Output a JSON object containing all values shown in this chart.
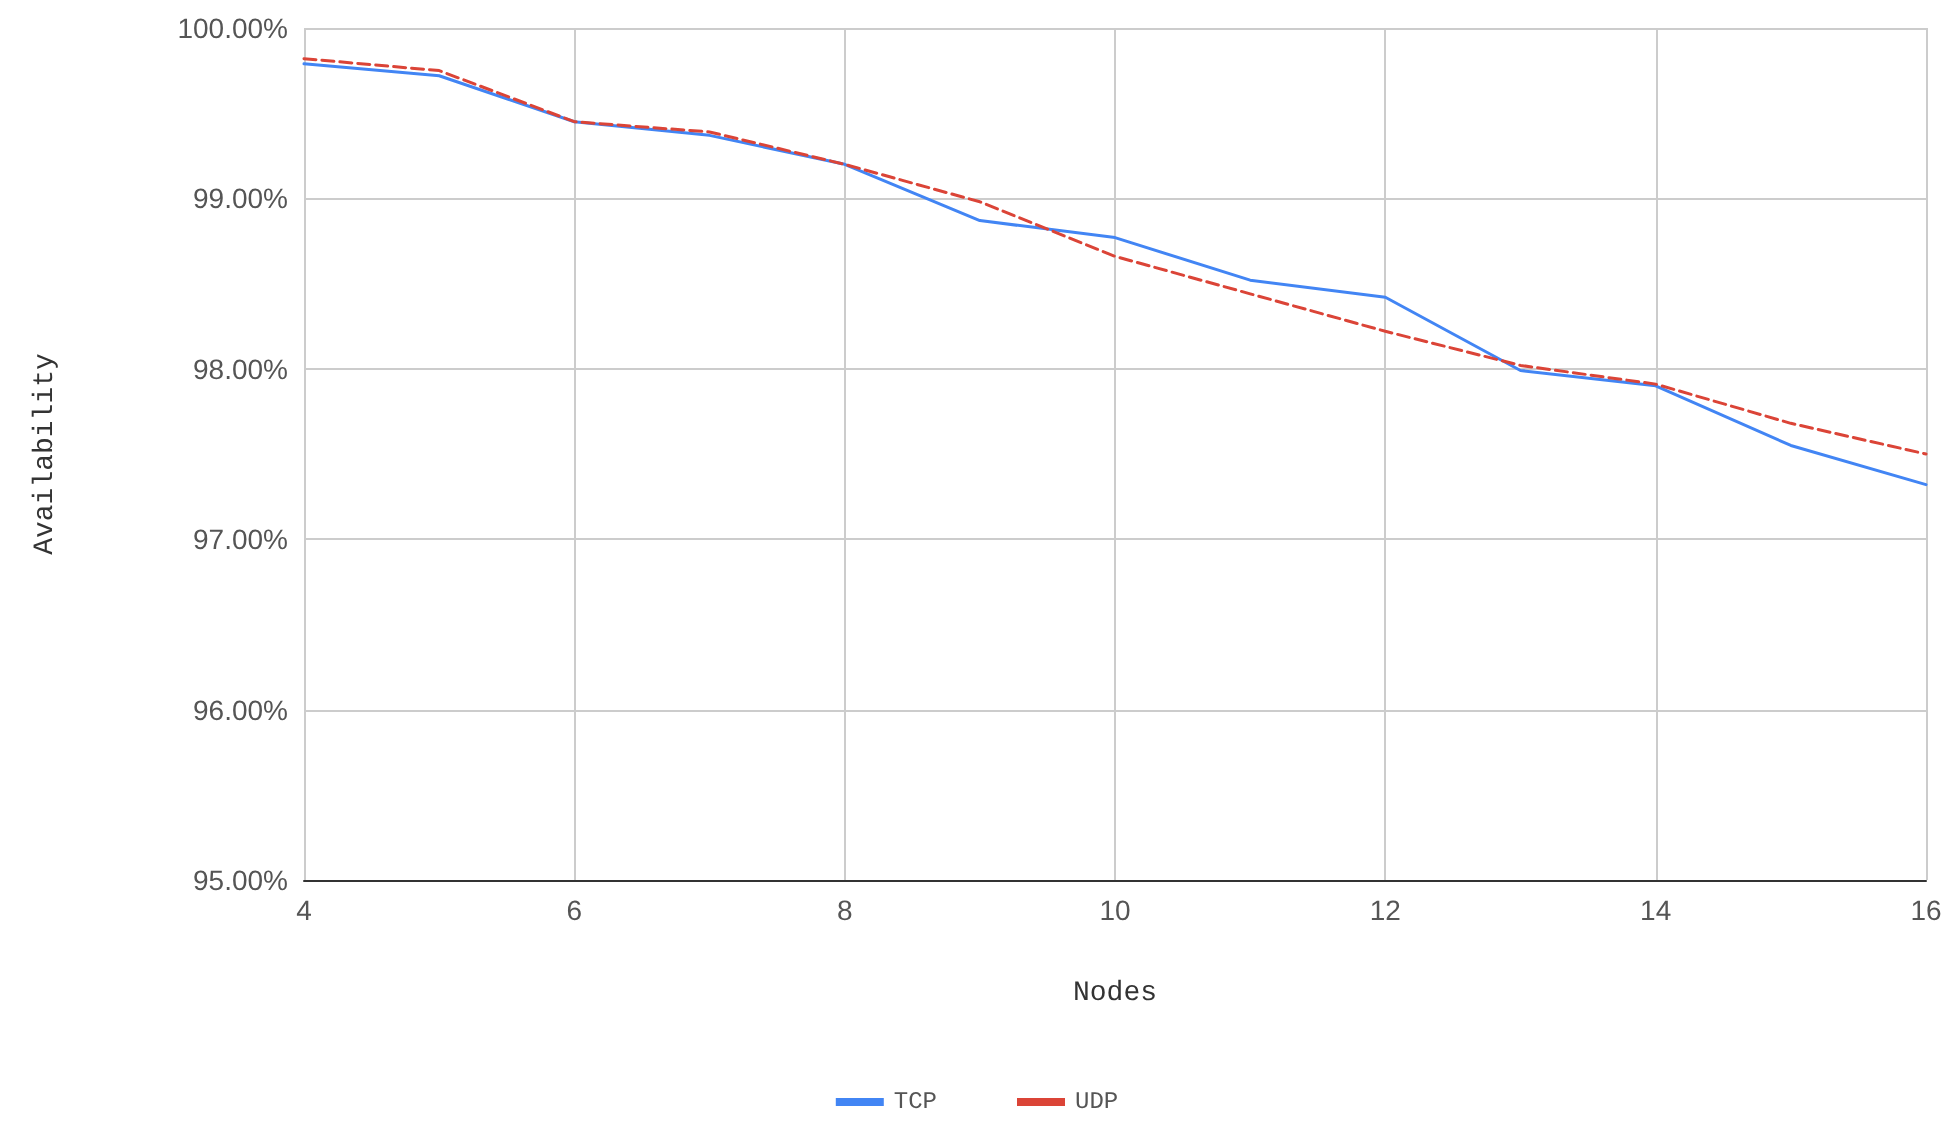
{
  "chart_data": {
    "type": "line",
    "xlabel": "Nodes",
    "ylabel": "Availability",
    "x": [
      4,
      5,
      6,
      7,
      8,
      9,
      10,
      11,
      12,
      13,
      14,
      15,
      16
    ],
    "series": [
      {
        "name": "TCP",
        "color": "#4285f4",
        "line_style": "solid",
        "values": [
          99.79,
          99.72,
          99.45,
          99.37,
          99.2,
          98.87,
          98.77,
          98.52,
          98.42,
          97.99,
          97.9,
          97.55,
          97.32
        ]
      },
      {
        "name": "UDP",
        "color": "#db4437",
        "line_style": "dashed",
        "values": [
          99.82,
          99.75,
          99.45,
          99.39,
          99.2,
          98.98,
          98.66,
          98.44,
          98.22,
          98.02,
          97.91,
          97.68,
          97.5
        ]
      }
    ],
    "xlim": [
      4,
      16
    ],
    "xticks": [
      4,
      6,
      8,
      10,
      12,
      14,
      16
    ],
    "ylim": [
      95,
      100
    ],
    "yticks": [
      {
        "value": 95,
        "label": "95.00%"
      },
      {
        "value": 96,
        "label": "96.00%"
      },
      {
        "value": 97,
        "label": "97.00%"
      },
      {
        "value": 98,
        "label": "98.00%"
      },
      {
        "value": 99,
        "label": "99.00%"
      },
      {
        "value": 100,
        "label": "100.00%"
      }
    ],
    "grid": true,
    "legend": "bottom",
    "marker": "none"
  }
}
